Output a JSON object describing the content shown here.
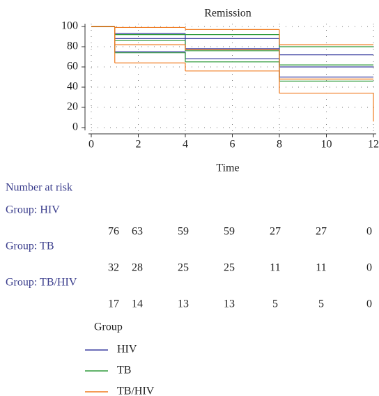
{
  "chart_data": {
    "type": "step",
    "title": "Remission",
    "x_label": "Time",
    "x": [
      0,
      1,
      4,
      8,
      12
    ],
    "series": [
      {
        "name": "HIV",
        "color": "#3b3fa0",
        "values": [
          100,
          88,
          78,
          60,
          60
        ],
        "lower": [
          100,
          75,
          68,
          50,
          50
        ],
        "upper": [
          100,
          93,
          88,
          72,
          72
        ]
      },
      {
        "name": "TB",
        "color": "#2e9a3a",
        "values": [
          100,
          86,
          76,
          62,
          62
        ],
        "lower": [
          100,
          74,
          65,
          46,
          46
        ],
        "upper": [
          100,
          92,
          92,
          80,
          80
        ]
      },
      {
        "name": "TB/HIV",
        "color": "#f07a1e",
        "values": [
          100,
          82,
          77,
          48,
          48
        ],
        "lower": [
          100,
          64,
          56,
          34,
          6
        ],
        "upper": [
          100,
          99,
          97,
          82,
          82
        ]
      }
    ],
    "xlim": [
      0,
      12
    ],
    "xticks": [
      0,
      2,
      4,
      6,
      8,
      10,
      12
    ],
    "ylim": [
      0,
      100
    ],
    "yticks": [
      0,
      20,
      40,
      60,
      80,
      100
    ],
    "grid": true,
    "legend_title": "Group",
    "risk_table": {
      "title": "Number at risk",
      "groups": [
        {
          "label": "Group: HIV",
          "counts": [
            76,
            63,
            59,
            59,
            27,
            27,
            0
          ]
        },
        {
          "label": "Group: TB",
          "counts": [
            32,
            28,
            25,
            25,
            11,
            11,
            0
          ]
        },
        {
          "label": "Group: TB/HIV",
          "counts": [
            17,
            14,
            13,
            13,
            5,
            5,
            0
          ]
        }
      ]
    }
  }
}
